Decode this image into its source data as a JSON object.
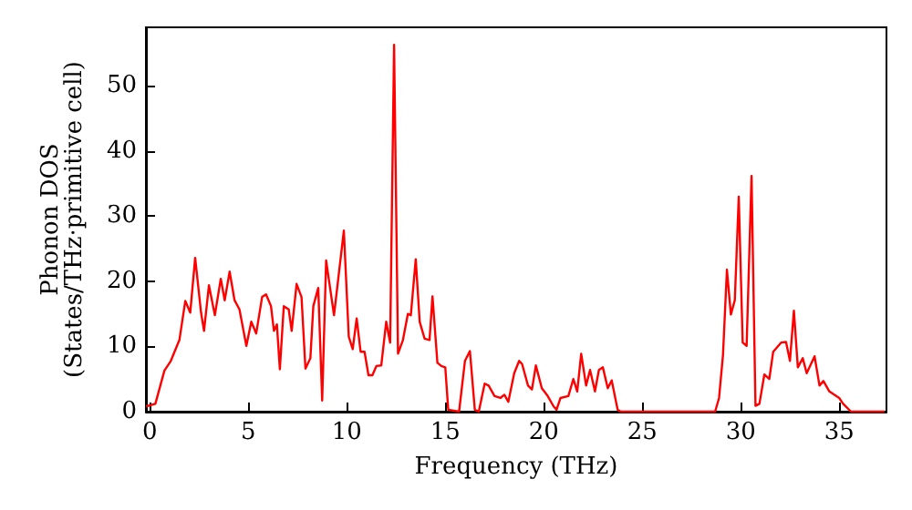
{
  "chart_data": {
    "type": "line",
    "xlabel": "Frequency (THz)",
    "ylabel": "Phonon DOS\n(States/THz·primitive cell)",
    "xlim": [
      -0.2,
      37.4
    ],
    "ylim": [
      0,
      59
    ],
    "xticks": [
      0,
      5,
      10,
      15,
      20,
      25,
      30,
      35
    ],
    "yticks": [
      0,
      10,
      20,
      30,
      40,
      50
    ],
    "grid": false,
    "marker": "none",
    "line_style": "solid",
    "series": [
      {
        "color": "#ff0000",
        "x": [
          -0.19,
          0.28,
          0.74,
          1.05,
          1.5,
          1.8,
          2.05,
          2.3,
          2.6,
          2.75,
          3.0,
          3.3,
          3.6,
          3.8,
          4.05,
          4.3,
          4.55,
          4.9,
          5.15,
          5.4,
          5.7,
          5.9,
          6.15,
          6.3,
          6.45,
          6.6,
          6.8,
          7.05,
          7.2,
          7.45,
          7.7,
          7.9,
          8.15,
          8.3,
          8.55,
          8.75,
          8.95,
          9.35,
          9.85,
          10.1,
          10.3,
          10.5,
          10.7,
          10.9,
          11.1,
          11.3,
          11.5,
          11.75,
          12.0,
          12.2,
          12.4,
          12.6,
          12.85,
          13.1,
          13.25,
          13.5,
          13.7,
          13.95,
          14.2,
          14.35,
          14.6,
          14.8,
          15.0,
          15.15,
          15.7,
          16.0,
          16.25,
          16.5,
          16.7,
          17.0,
          17.2,
          17.5,
          17.8,
          18.0,
          18.2,
          18.5,
          18.75,
          18.9,
          19.2,
          19.4,
          19.6,
          19.9,
          20.2,
          20.5,
          20.65,
          20.85,
          21.25,
          21.5,
          21.7,
          21.9,
          22.15,
          22.35,
          22.6,
          22.8,
          23.0,
          23.25,
          23.45,
          23.75,
          23.9,
          28.7,
          28.9,
          29.1,
          29.3,
          29.5,
          29.7,
          29.9,
          30.1,
          30.3,
          30.55,
          30.75,
          30.95,
          31.2,
          31.45,
          31.65,
          32.05,
          32.3,
          32.5,
          32.7,
          32.9,
          33.15,
          33.35,
          33.75,
          34.0,
          34.2,
          34.5,
          35.0,
          35.2,
          35.6,
          37.3
        ],
        "values": [
          0.8,
          1.2,
          6.3,
          7.7,
          11,
          17,
          15.2,
          23.6,
          15.2,
          12.4,
          19.4,
          14.8,
          20.4,
          17.1,
          21.5,
          17.1,
          15.7,
          10.1,
          13.8,
          12,
          17.6,
          18,
          16.2,
          12.4,
          13.4,
          6.5,
          16.2,
          15.7,
          12.4,
          19.6,
          17.6,
          6.6,
          8.2,
          16.2,
          19,
          1.7,
          23.2,
          14.8,
          27.8,
          11.5,
          9.6,
          14.3,
          9.2,
          9.2,
          5.6,
          5.6,
          7,
          7.1,
          13.8,
          10.6,
          56.3,
          8.9,
          11,
          15,
          14.8,
          23.4,
          13.8,
          11.2,
          11,
          17.7,
          7.5,
          7,
          6.8,
          0.3,
          0,
          7.8,
          9.3,
          0.3,
          0,
          4.3,
          4,
          2.4,
          2.1,
          2.6,
          1.5,
          5.9,
          7.8,
          7.3,
          4,
          3.4,
          7.1,
          3.6,
          2.4,
          0.8,
          0.3,
          2.1,
          2.4,
          5,
          3.1,
          8.9,
          4,
          6.4,
          3.1,
          6.4,
          6.8,
          3.6,
          4.8,
          0.3,
          0,
          0,
          2.1,
          8.7,
          21.8,
          14.9,
          17.1,
          33,
          10.6,
          10.1,
          36.2,
          0.9,
          1.2,
          5.7,
          5,
          9.2,
          10.6,
          10.7,
          7.8,
          15.5,
          6.8,
          8.2,
          5.9,
          8.5,
          4,
          4.7,
          3.1,
          2.1,
          1.2,
          0,
          0
        ]
      }
    ]
  }
}
